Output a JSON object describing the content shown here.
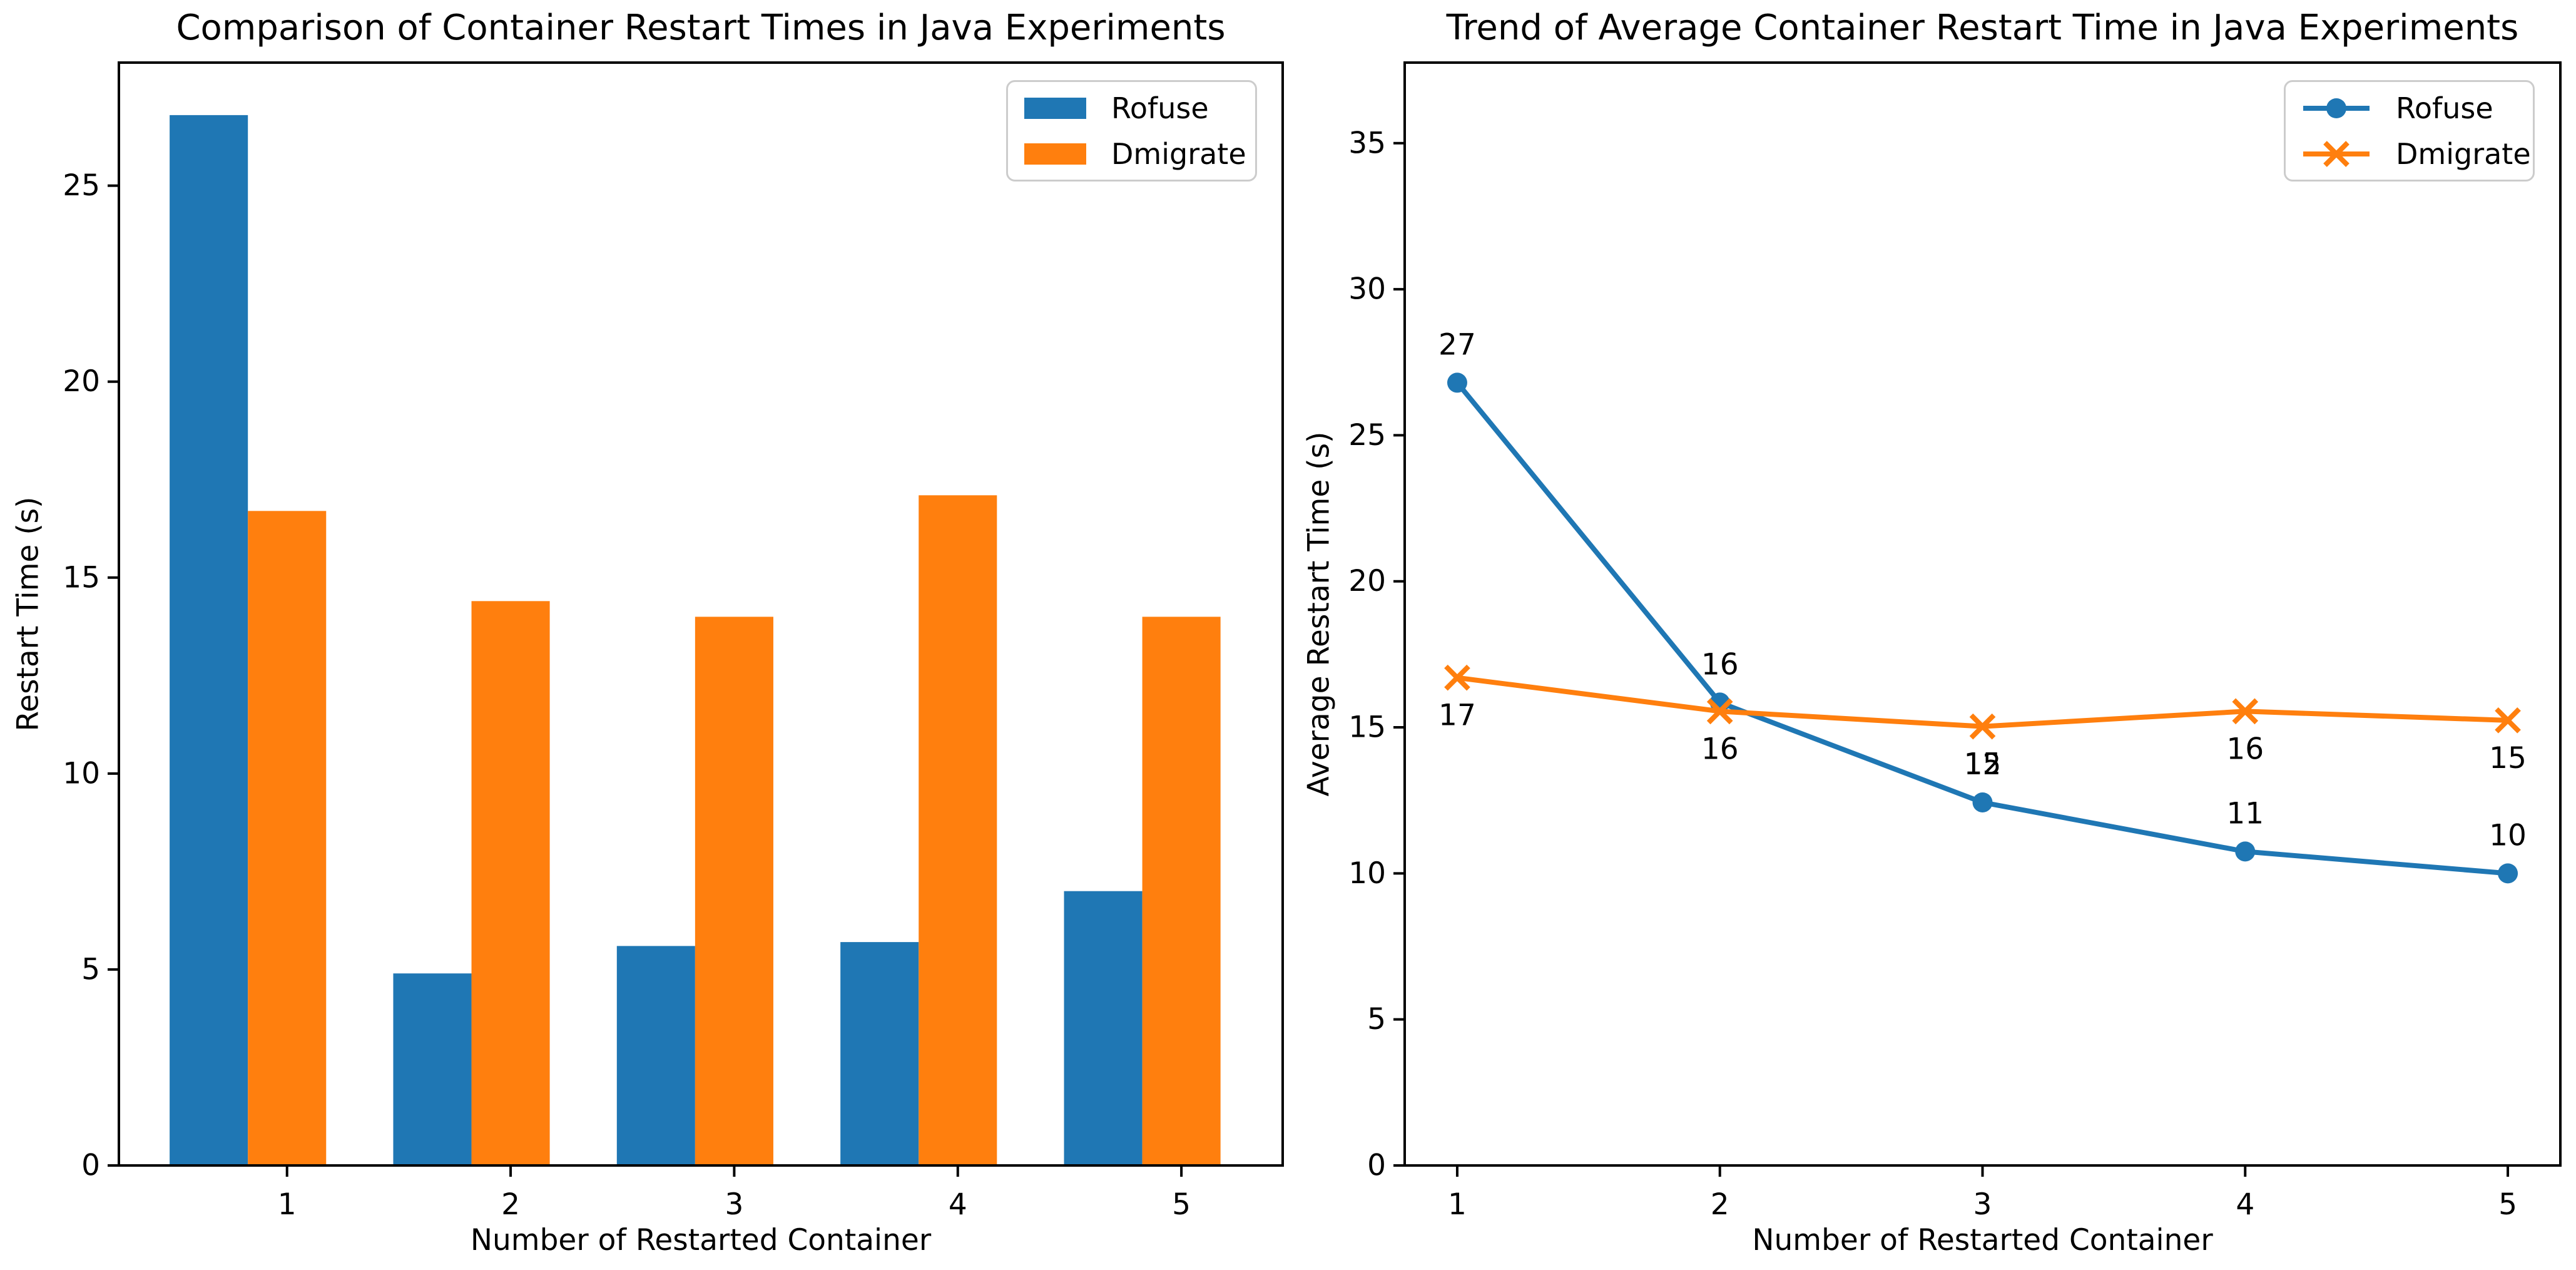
{
  "figure": {
    "background": "#ffffff",
    "text_color": "#000000",
    "series_colors": {
      "rofuse": "#1f77b4",
      "dmigrate": "#ff7f0e"
    },
    "legend_border_color": "#cccccc"
  },
  "chart_data": [
    {
      "type": "bar",
      "title": "Comparison of Container Restart Times in Java Experiments",
      "xlabel": "Number of Restarted Container",
      "ylabel": "Restart Time (s)",
      "categories": [
        1,
        2,
        3,
        4,
        5
      ],
      "series": [
        {
          "name": "Rofuse",
          "color": "#1f77b4",
          "values": [
            26.8,
            4.9,
            5.6,
            5.7,
            7.0
          ]
        },
        {
          "name": "Dmigrate",
          "color": "#ff7f0e",
          "values": [
            16.7,
            14.4,
            14.0,
            17.1,
            14.0
          ]
        }
      ],
      "bar_width": 0.35,
      "bar_offsets": [
        -0.35,
        0
      ],
      "xlim": [
        0.248,
        5.453
      ],
      "ylim": [
        0,
        28.14
      ],
      "yticks": [
        0,
        5,
        10,
        15,
        20,
        25
      ],
      "grid": false,
      "legend_position": "upper right"
    },
    {
      "type": "line",
      "title": "Trend of Average Container Restart Time in Java Experiments",
      "xlabel": "Number of Restarted Container",
      "ylabel": "Average Restart Time (s)",
      "x": [
        1,
        2,
        3,
        4,
        5
      ],
      "series": [
        {
          "name": "Rofuse",
          "color": "#1f77b4",
          "marker": "circle",
          "values": [
            26.8,
            15.85,
            12.43,
            10.75,
            10.0
          ],
          "point_labels": [
            "27",
            "16",
            "12",
            "11",
            "10"
          ],
          "label_position": "above"
        },
        {
          "name": "Dmigrate",
          "color": "#ff7f0e",
          "marker": "x",
          "values": [
            16.7,
            15.55,
            15.03,
            15.55,
            15.24
          ],
          "point_labels": [
            "17",
            "16",
            "15",
            "16",
            "15"
          ],
          "label_position": "below"
        }
      ],
      "xlim": [
        0.8,
        5.2
      ],
      "ylim": [
        0,
        37.76
      ],
      "yticks": [
        0,
        5,
        10,
        15,
        20,
        25,
        30,
        35
      ],
      "grid": false,
      "legend_position": "upper right"
    }
  ]
}
